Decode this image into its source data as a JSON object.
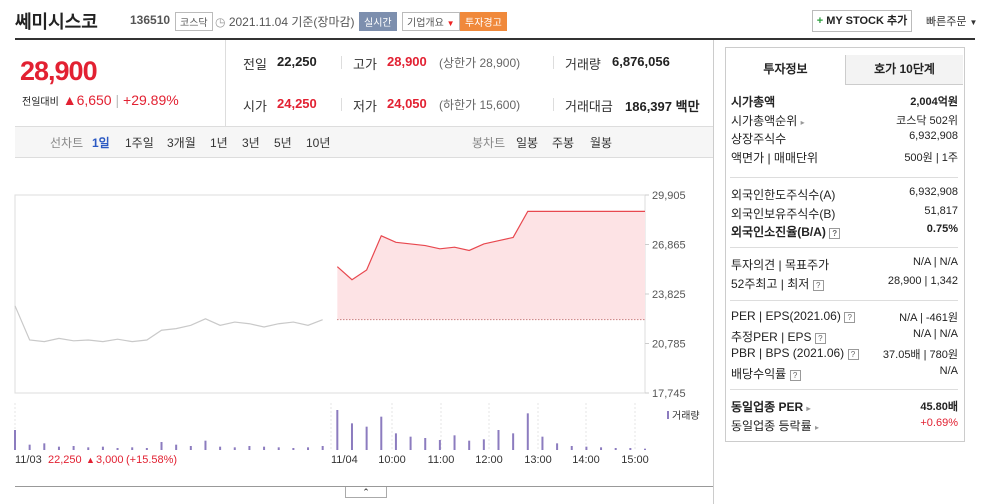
{
  "header": {
    "name": "쎄미시스코",
    "code": "136510",
    "market": "코스닥",
    "date": "2021.11.04 기준(장마감)",
    "realtime": "실시간",
    "overview": "기업개요",
    "warning": "투자경고",
    "mystock": "MY STOCK 추가",
    "quick_order": "빠른주문"
  },
  "price": {
    "current": "28,900",
    "change_label": "전일대비",
    "change": "6,650",
    "rate": "+29.89%"
  },
  "quote": {
    "rows": [
      [
        {
          "label": "전일",
          "value": "22,250",
          "color": "#222"
        },
        {
          "label": "고가",
          "value": "28,900",
          "color": "#e22132",
          "note": "(상한가 28,900)"
        },
        {
          "label": "거래량",
          "value": "6,876,056",
          "color": "#222"
        }
      ],
      [
        {
          "label": "시가",
          "value": "24,250",
          "color": "#e22132"
        },
        {
          "label": "저가",
          "value": "24,050",
          "color": "#e22132",
          "note": "(하한가 15,600)"
        },
        {
          "label": "거래대금",
          "value": "186,397 백만",
          "color": "#222"
        }
      ]
    ]
  },
  "tabs": {
    "line_title": "선차트",
    "line": [
      "1일",
      "1주일",
      "3개월",
      "1년",
      "3년",
      "5년",
      "10년"
    ],
    "candle_title": "봉차트",
    "candle": [
      "일봉",
      "주봉",
      "월봉"
    ]
  },
  "chart_data": {
    "type": "line",
    "ylim": [
      17745,
      29905
    ],
    "yticks": [
      {
        "value": 29905,
        "label": "29,905"
      },
      {
        "value": 26865,
        "label": "26,865"
      },
      {
        "value": 23825,
        "label": "23,825"
      },
      {
        "value": 20785,
        "label": "20,785"
      },
      {
        "value": 17745,
        "label": "17,745"
      }
    ],
    "base": 22250,
    "xticks": [
      "11/03",
      "11/04",
      "10:00",
      "11:00",
      "12:00",
      "13:00",
      "14:00",
      "15:00"
    ],
    "series": [
      {
        "color": "#c9c9c9",
        "values": [
          23100,
          21000,
          20900,
          21100,
          20950,
          21000,
          20900,
          21050,
          20900,
          21000,
          21600,
          21700,
          21900,
          22300,
          21900,
          22100,
          22000,
          21800,
          22000,
          22100,
          21900,
          22250,
          null,
          null,
          null,
          null,
          null,
          null,
          null,
          null,
          null,
          null,
          null,
          null,
          null,
          null,
          null,
          null,
          null,
          null,
          null,
          null,
          null,
          null
        ]
      },
      {
        "color": "#e8484f",
        "area": "#fde3e5",
        "values": [
          null,
          null,
          null,
          null,
          null,
          null,
          null,
          null,
          null,
          null,
          null,
          null,
          null,
          null,
          null,
          null,
          null,
          null,
          null,
          null,
          null,
          null,
          25500,
          24700,
          25300,
          27400,
          27000,
          26900,
          26800,
          26600,
          26700,
          26500,
          26900,
          27100,
          27300,
          28900,
          28900,
          28900,
          28900,
          28900,
          28900,
          28900,
          28900,
          28900
        ]
      }
    ],
    "volume": {
      "name": "거래량",
      "color": "#8c7cbf",
      "values": [
        30,
        8,
        10,
        5,
        6,
        4,
        5,
        3,
        4,
        3,
        12,
        8,
        6,
        14,
        5,
        4,
        6,
        5,
        4,
        3,
        4,
        6,
        60,
        40,
        35,
        50,
        25,
        20,
        18,
        15,
        22,
        14,
        16,
        30,
        25,
        55,
        20,
        10,
        6,
        5,
        4,
        3,
        3,
        2
      ]
    },
    "summary": {
      "close": "22,250",
      "change": "3,000",
      "rate": "(+15.58%)"
    }
  },
  "sidebar": {
    "tabs": [
      "투자정보",
      "호가 10단계"
    ],
    "groups": [
      [
        {
          "label": "시가총액",
          "value": "2,004억원",
          "bold": true
        },
        {
          "label": "시가총액순위",
          "value": "코스닥 502위",
          "arrow": true
        },
        {
          "label": "상장주식수",
          "value": "6,932,908"
        },
        {
          "label": "액면가 | 매매단위",
          "value": "500원 | 1주"
        }
      ],
      [
        {
          "label": "외국인한도주식수(A)",
          "value": "6,932,908"
        },
        {
          "label": "외국인보유주식수(B)",
          "value": "51,817"
        },
        {
          "label": "외국인소진율(B/A)",
          "value": "0.75%",
          "bold": true,
          "help": true
        }
      ],
      [
        {
          "label": "투자의견 | 목표주가",
          "value": "N/A | N/A"
        },
        {
          "label": "52주최고 | 최저",
          "value": "28,900 | 1,342",
          "help": true
        }
      ],
      [
        {
          "label": "PER | EPS(2021.06)",
          "value": "N/A | -461원",
          "help": true
        },
        {
          "label": "추정PER | EPS",
          "value": "N/A | N/A",
          "help": true
        },
        {
          "label": "PBR | BPS (2021.06)",
          "value": "37.05배 | 780원",
          "help": true
        },
        {
          "label": "배당수익률",
          "value": "N/A",
          "help": true
        }
      ],
      [
        {
          "label": "동일업종 PER",
          "value": "45.80배",
          "bold": true,
          "arrow": true
        },
        {
          "label": "동일업종 등락률",
          "value": "+0.69%",
          "arrow": true,
          "color": "#e22132"
        }
      ]
    ]
  }
}
